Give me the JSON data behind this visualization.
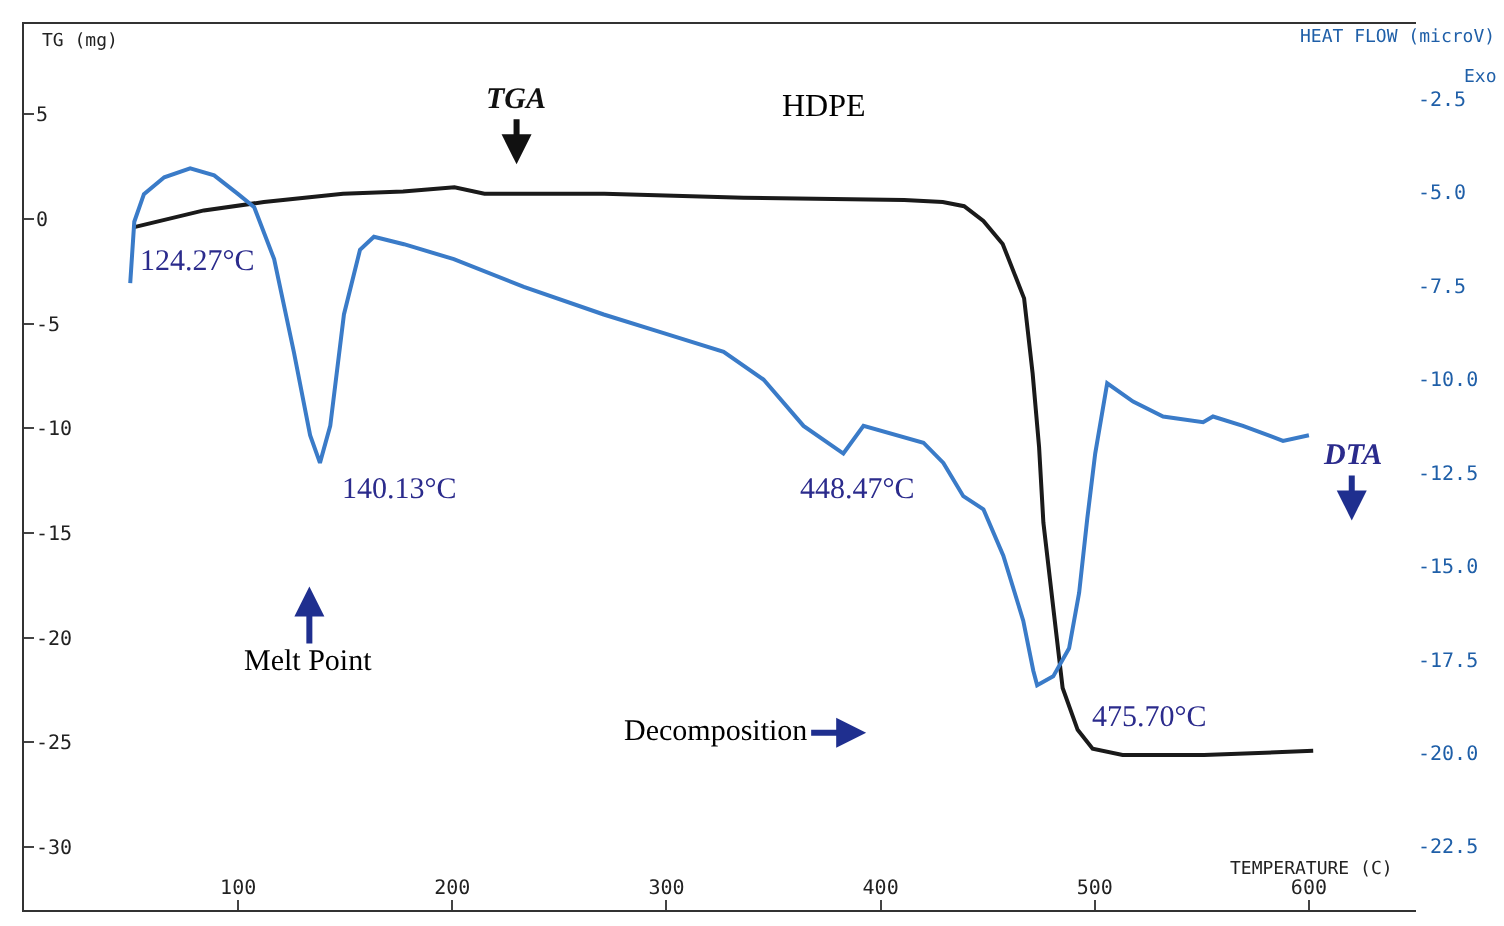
{
  "chart_data": {
    "type": "line",
    "title": "HDPE",
    "xlabel": "TEMPERATURE (C)",
    "ylabel": "TG (mg)",
    "y2label": "HEAT FLOW (microV)",
    "series": [
      {
        "name": "TGA",
        "color": "#1a1a1a",
        "x": [
          51.5,
          84,
          112,
          149,
          177,
          201,
          215,
          271,
          336,
          411,
          429,
          439,
          448,
          457,
          467,
          471,
          474,
          476,
          481,
          485,
          492,
          499,
          513,
          551,
          602
        ],
        "values": [
          -0.4,
          0.4,
          0.8,
          1.2,
          1.3,
          1.5,
          1.2,
          1.2,
          1.0,
          0.9,
          0.8,
          0.6,
          -0.1,
          -1.2,
          -3.8,
          -7.4,
          -10.9,
          -14.5,
          -18.9,
          -22.4,
          -24.4,
          -25.3,
          -25.6,
          -25.6,
          -25.4
        ]
      },
      {
        "name": "DTA",
        "color": "#3a7bc8",
        "axis": "y2",
        "x": [
          49.6,
          51.5,
          56,
          65.5,
          77.6,
          88.8,
          100,
          107.5,
          116.8,
          126,
          133.6,
          138.2,
          143,
          149.4,
          156.9,
          163.4,
          177.4,
          200.7,
          233.4,
          270.7,
          298.7,
          326.7,
          345.3,
          364,
          382.6,
          392,
          420,
          429.3,
          438.6,
          448,
          457.3,
          466.6,
          471.3,
          473.1,
          480.6,
          488,
          492.7,
          496.5,
          500.2,
          505.8,
          517.9,
          531.9,
          550.6,
          555.2,
          569.2,
          587.9,
          600
        ],
        "values": [
          -7.43,
          -5.79,
          -5.05,
          -4.6,
          -4.36,
          -4.55,
          -5.05,
          -5.4,
          -6.79,
          -9.27,
          -11.5,
          -12.24,
          -11.25,
          -8.27,
          -6.54,
          -6.19,
          -6.39,
          -6.79,
          -7.53,
          -8.27,
          -8.77,
          -9.27,
          -10.01,
          -11.25,
          -11.99,
          -11.25,
          -11.7,
          -12.24,
          -13.13,
          -13.48,
          -14.72,
          -16.46,
          -17.8,
          -18.19,
          -17.95,
          -17.2,
          -15.71,
          -13.73,
          -11.99,
          -10.11,
          -10.6,
          -11.0,
          -11.15,
          -11.0,
          -11.25,
          -11.65,
          -11.5
        ]
      }
    ],
    "xlim": [
      0,
      650
    ],
    "xticks": [
      100,
      200,
      300,
      400,
      500,
      600
    ],
    "ylim": [
      -33,
      9.3
    ],
    "yticks": [
      5,
      0,
      -5,
      -10,
      -15,
      -20,
      -25,
      -30
    ],
    "y2lim": [
      -24.2,
      -0.5
    ],
    "y2ticks": [
      {
        "value": -2.5,
        "label": "-2.5"
      },
      {
        "value": -5,
        "label": "-5.0"
      },
      {
        "value": -7.5,
        "label": "-7.5"
      },
      {
        "value": -10,
        "label": "-10.0"
      },
      {
        "value": -12.5,
        "label": "-12.5"
      },
      {
        "value": -15,
        "label": "-15.0"
      },
      {
        "value": -17.5,
        "label": "-17.5"
      },
      {
        "value": -20,
        "label": "-20.0"
      },
      {
        "value": -22.5,
        "label": "-22.5"
      }
    ],
    "legend": false,
    "marker": "none",
    "line_style": "solid",
    "annotations": [
      "124.27°C",
      "140.13°C",
      "448.47°C",
      "475.70°C",
      "Melt Point",
      "Decomposition",
      "Exo"
    ]
  }
}
